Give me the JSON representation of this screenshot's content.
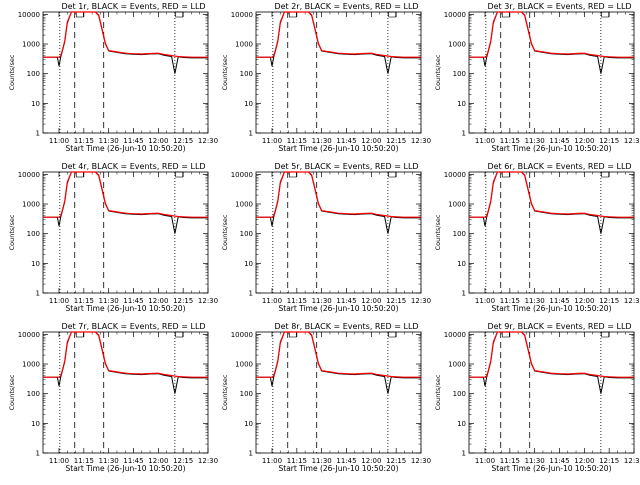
{
  "figure": {
    "panel_titles": [
      "Det 1r, BLACK = Events, RED = LLD",
      "Det 2r, BLACK = Events, RED = LLD",
      "Det 3r, BLACK = Events, RED = LLD",
      "Det 4r, BLACK = Events, RED = LLD",
      "Det 5r, BLACK = Events, RED = LLD",
      "Det 6r, BLACK = Events, RED = LLD",
      "Det 7r, BLACK = Events, RED = LLD",
      "Det 8r, BLACK = Events, RED = LLD",
      "Det 9r, BLACK = Events, RED = LLD"
    ],
    "xlabel": "Start Time (26-Jun-10 10:50:20)",
    "ylabel": "Counts/sec",
    "colors": {
      "events": "#000000",
      "lld": "#ff0000",
      "background": "#ffffff"
    }
  },
  "chart_data": {
    "type": "line",
    "layout": "3x3 grid",
    "x_tick_labels": [
      "11:00",
      "11:15",
      "11:30",
      "11:45",
      "12:00",
      "12:15",
      "12:30"
    ],
    "x_tick_minutes": [
      0,
      15,
      30,
      45,
      60,
      75,
      90
    ],
    "xlim_minutes": [
      -9.67,
      90
    ],
    "y_scale": "log",
    "ylim": [
      1,
      12000
    ],
    "y_tick_labels": [
      "1",
      "10",
      "100",
      "1000",
      "10000"
    ],
    "y_tick_values": [
      1,
      10,
      100,
      1000,
      10000
    ],
    "vertical_markers": [
      {
        "style": "dotted",
        "minute": 0.5
      },
      {
        "style": "dashed",
        "minute": 9.5
      },
      {
        "style": "dashed",
        "minute": 27
      },
      {
        "style": "dotted",
        "minute": 70
      }
    ],
    "series": [
      {
        "name": "Events",
        "color": "#000000",
        "x": [
          -9.67,
          -1,
          0,
          1,
          2,
          3.5,
          5,
          7.5,
          10,
          18,
          22,
          24,
          26,
          28,
          30,
          35,
          40,
          45,
          50,
          55,
          60,
          63,
          65,
          68,
          70,
          72,
          75,
          80,
          85,
          90
        ],
        "y": [
          360,
          360,
          180,
          360,
          560,
          1200,
          5000,
          12000,
          12000,
          12000,
          12000,
          9000,
          3000,
          1000,
          580,
          520,
          470,
          450,
          440,
          460,
          470,
          420,
          400,
          380,
          100,
          370,
          350,
          340,
          340,
          340
        ]
      },
      {
        "name": "LLD",
        "color": "#ff0000",
        "x": [
          -9.67,
          -1,
          0,
          1,
          2,
          3.5,
          5,
          7.5,
          10,
          18,
          22,
          24,
          26,
          28,
          30,
          35,
          40,
          45,
          50,
          55,
          60,
          63,
          65,
          68,
          70,
          72,
          75,
          80,
          85,
          90
        ],
        "y": [
          360,
          360,
          360,
          400,
          600,
          1300,
          5500,
          12000,
          12000,
          12000,
          12000,
          9500,
          3200,
          1050,
          600,
          540,
          490,
          470,
          460,
          480,
          490,
          450,
          430,
          410,
          390,
          380,
          370,
          360,
          360,
          360
        ]
      }
    ]
  }
}
